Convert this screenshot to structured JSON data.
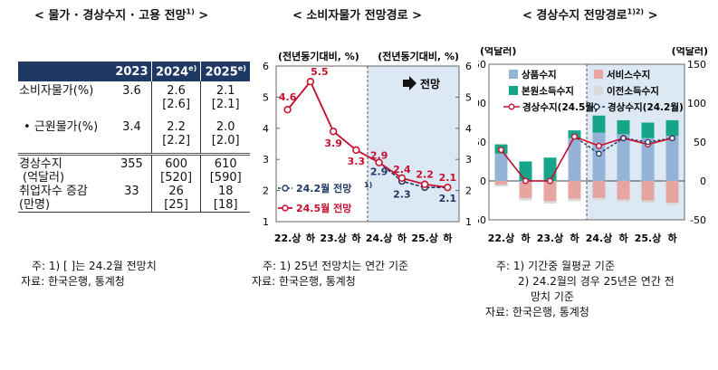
{
  "titles": {
    "left": "< 물가 · 경상수지 · 고용 전망",
    "left_sup": "1)",
    "left_end": " >",
    "middle": "< 소비자물가 전망경로 >",
    "right": "< 경상수지 전망경로",
    "right_sup": "1)2)",
    "right_end": " >"
  },
  "table": {
    "headers": [
      "",
      "2023",
      "2024",
      "2025"
    ],
    "header_sup": [
      "",
      "",
      "e)",
      "e)"
    ],
    "rows": [
      {
        "label": "소비자물가(%)",
        "v2023": "3.6",
        "v2024": "2.6",
        "v2024b": "[2.6]",
        "v2025": "2.1",
        "v2025b": "[2.1]"
      },
      {
        "label": "• 근원물가(%)",
        "v2023": "3.4",
        "v2024": "2.2",
        "v2024b": "[2.2]",
        "v2025": "2.0",
        "v2025b": "[2.0]"
      },
      {
        "label": "경상수지",
        "label2": "(억달러)",
        "v2023": "355",
        "v2024": "600",
        "v2024b": "[520]",
        "v2025": "610",
        "v2025b": "[590]"
      },
      {
        "label": "취업자수 증감",
        "label2": "(만명)",
        "v2023": "33",
        "v2024": "26",
        "v2024b": "[25]",
        "v2025": "18",
        "v2025b": "[18]"
      }
    ]
  },
  "notes": {
    "left": [
      "주: 1) [  ]는 24.2월 전망치",
      "자료: 한국은행, 통계청"
    ],
    "middle": [
      "주: 1) 25년 전망치는 연간 기준",
      "자료: 한국은행, 통계청"
    ],
    "right": [
      "주: 1) 기간중 월평균 기준",
      "2) 24.2월의 경우 25년은 연간 전",
      "망치 기준",
      "자료: 한국은행, 통계청"
    ]
  },
  "colors": {
    "header_bg": "#1f3864",
    "shade": "#dce9f5",
    "red": "#c8102e",
    "navy": "#1f3864",
    "goods": "#95b3d7",
    "services": "#e6a5a0",
    "primary_income": "#17a589",
    "secondary_income": "#d9d9d9"
  },
  "chart_data": [
    {
      "type": "line",
      "unit_left": "(전년동기대비, %)",
      "unit_right": "(전년동기대비, %)",
      "forecast_label": "전망",
      "categories": [
        "22.상",
        "하",
        "23.상",
        "하",
        "24.상",
        "하",
        "25.상",
        "하"
      ],
      "ylim": [
        1,
        6
      ],
      "yticks": [
        "1",
        "2",
        "3",
        "4",
        "5",
        "6"
      ],
      "series": [
        {
          "name": "24.2월 전망",
          "name_sup": "1)",
          "values": [
            4.6,
            5.5,
            3.9,
            3.3,
            2.9,
            2.3,
            2.1,
            2.1
          ]
        },
        {
          "name": "24.5월 전망",
          "values": [
            4.6,
            5.5,
            3.9,
            3.3,
            2.9,
            2.4,
            2.2,
            2.1
          ]
        }
      ],
      "data_labels": [
        {
          "text": "4.6"
        },
        {
          "text": "5.5"
        },
        {
          "text": "3.9"
        },
        {
          "text": "3.3"
        },
        {
          "text": "2.9"
        },
        {
          "text": "2.4"
        },
        {
          "text": "2.2"
        },
        {
          "text": "2.1"
        },
        {
          "text": "2.9"
        },
        {
          "text": "2.3"
        },
        {
          "text": "2.1"
        }
      ]
    },
    {
      "type": "bar",
      "unit_left": "(억달러)",
      "unit_right": "(억달러)",
      "categories": [
        "22.상",
        "하",
        "23.상",
        "하",
        "24.상",
        "하",
        "25.상",
        "하"
      ],
      "ylim": [
        -50,
        150
      ],
      "yticks": [
        "-50",
        "0",
        "50",
        "100",
        "150"
      ],
      "series": [
        {
          "name": "상품수지",
          "values": [
            35,
            -2,
            -1,
            55,
            62,
            60,
            55,
            58
          ]
        },
        {
          "name": "서비스수지",
          "values": [
            -5,
            -20,
            -25,
            -23,
            -22,
            -24,
            -25,
            -28
          ]
        },
        {
          "name": "본원소득수지",
          "values": [
            12,
            25,
            30,
            10,
            22,
            18,
            20,
            20
          ]
        },
        {
          "name": "이전소득수지",
          "values": [
            -2,
            -3,
            -3,
            -3,
            -3,
            -3,
            -3,
            -3
          ]
        },
        {
          "name": "경상수지(24.5월)",
          "values": [
            40,
            0,
            0,
            57,
            45,
            55,
            47,
            55
          ]
        },
        {
          "name": "경상수지(24.2월)",
          "values": [
            40,
            0,
            0,
            57,
            35,
            55,
            50,
            55
          ]
        }
      ]
    }
  ]
}
